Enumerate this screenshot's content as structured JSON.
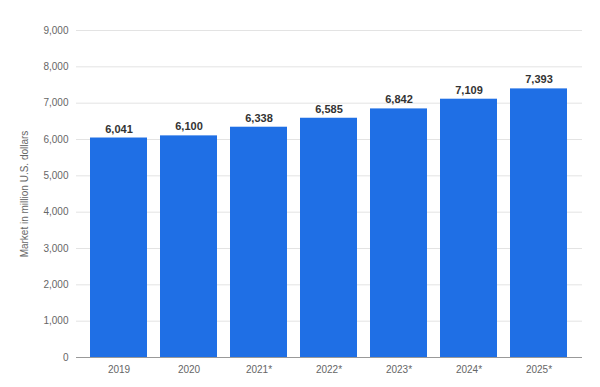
{
  "chart_data": {
    "type": "bar",
    "categories": [
      "2019",
      "2020",
      "2021*",
      "2022*",
      "2023*",
      "2024*",
      "2025*"
    ],
    "values": [
      6041,
      6100,
      6338,
      6585,
      6842,
      7109,
      7393
    ],
    "value_labels": [
      "6,041",
      "6,100",
      "6,338",
      "6,585",
      "6,842",
      "7,109",
      "7,393"
    ],
    "data_labels": true,
    "color": "#1f6fe5",
    "y_label": "Market in million U.S. dollars",
    "ylim": [
      0,
      9000
    ],
    "yticks": [
      0,
      {
        "value": 1000,
        "label": "1,000"
      },
      {
        "value": 2000,
        "label": "2,000"
      },
      {
        "value": 3000,
        "label": "3,000"
      },
      {
        "value": 4000,
        "label": "4,000"
      },
      {
        "value": 5000,
        "label": "5,000"
      },
      {
        "value": 6000,
        "label": "6,000"
      },
      {
        "value": 7000,
        "label": "7,000"
      },
      {
        "value": 8000,
        "label": "8,000"
      },
      {
        "value": 9000,
        "label": "9,000"
      }
    ],
    "grid": true
  }
}
